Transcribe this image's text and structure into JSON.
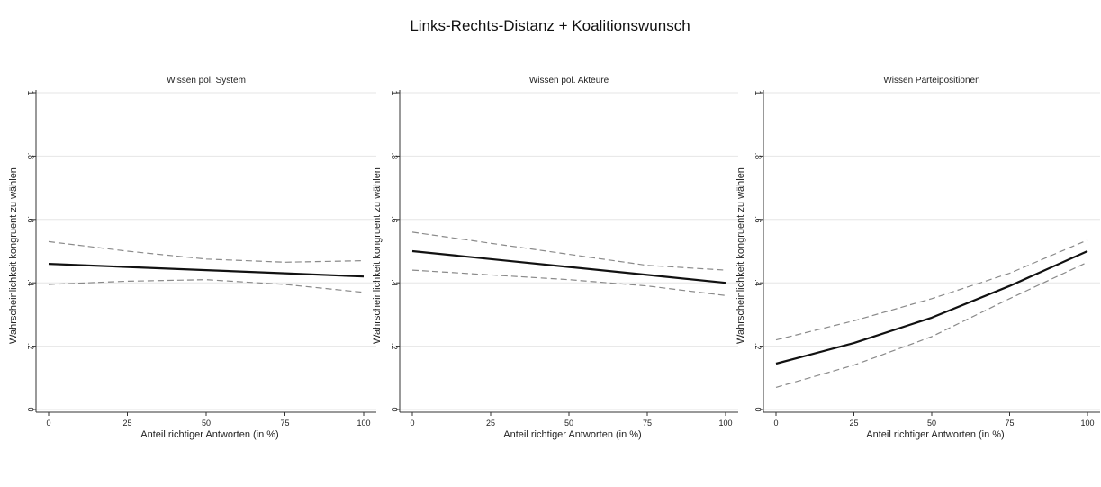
{
  "title": "Links-Rechts-Distanz + Koalitionswunsch",
  "colors": {
    "line": "#111111",
    "ci": "#8a8a8a",
    "grid": "#e6e6e6",
    "axis": "#333333",
    "background": "#ffffff"
  },
  "chart_data": [
    {
      "type": "line",
      "title": "Wissen pol. System",
      "xlabel": "Anteil richtiger Antworten (in %)",
      "ylabel": "Wahrscheinlichkeit kongruent zu wählen",
      "xticks": [
        "0",
        "25",
        "50",
        "75",
        "100"
      ],
      "yticks": [
        "0",
        ".2",
        ".4",
        ".6",
        ".8",
        "1"
      ],
      "xlim": [
        0,
        100
      ],
      "ylim": [
        0,
        1
      ],
      "grid": true,
      "x": [
        0,
        25,
        50,
        75,
        100
      ],
      "series": [
        {
          "style": "solid",
          "values": [
            0.46,
            0.45,
            0.44,
            0.43,
            0.42
          ]
        },
        {
          "style": "dashed",
          "values": [
            0.53,
            0.5,
            0.475,
            0.465,
            0.47
          ]
        },
        {
          "style": "dashed",
          "values": [
            0.395,
            0.405,
            0.41,
            0.395,
            0.37
          ]
        }
      ]
    },
    {
      "type": "line",
      "title": "Wissen pol. Akteure",
      "xlabel": "Anteil richtiger Antworten (in %)",
      "ylabel": "Wahrscheinlichkeit kongruent zu wählen",
      "xticks": [
        "0",
        "25",
        "50",
        "75",
        "100"
      ],
      "yticks": [
        "0",
        ".2",
        ".4",
        ".6",
        ".8",
        "1"
      ],
      "xlim": [
        0,
        100
      ],
      "ylim": [
        0,
        1
      ],
      "grid": true,
      "x": [
        0,
        25,
        50,
        75,
        100
      ],
      "series": [
        {
          "style": "solid",
          "values": [
            0.5,
            0.475,
            0.45,
            0.425,
            0.4
          ]
        },
        {
          "style": "dashed",
          "values": [
            0.56,
            0.525,
            0.49,
            0.455,
            0.44
          ]
        },
        {
          "style": "dashed",
          "values": [
            0.44,
            0.425,
            0.41,
            0.39,
            0.36
          ]
        }
      ]
    },
    {
      "type": "line",
      "title": "Wissen Parteipositionen",
      "xlabel": "Anteil richtiger Antworten (in %)",
      "ylabel": "Wahrscheinlichkeit kongruent zu wählen",
      "xticks": [
        "0",
        "25",
        "50",
        "75",
        "100"
      ],
      "yticks": [
        "0",
        ".2",
        ".4",
        ".6",
        ".8",
        "1"
      ],
      "xlim": [
        0,
        100
      ],
      "ylim": [
        0,
        1
      ],
      "grid": true,
      "x": [
        0,
        25,
        50,
        75,
        100
      ],
      "series": [
        {
          "style": "solid",
          "values": [
            0.145,
            0.21,
            0.29,
            0.39,
            0.5
          ]
        },
        {
          "style": "dashed",
          "values": [
            0.22,
            0.28,
            0.35,
            0.43,
            0.535
          ]
        },
        {
          "style": "dashed",
          "values": [
            0.07,
            0.14,
            0.23,
            0.35,
            0.465
          ]
        }
      ]
    }
  ]
}
